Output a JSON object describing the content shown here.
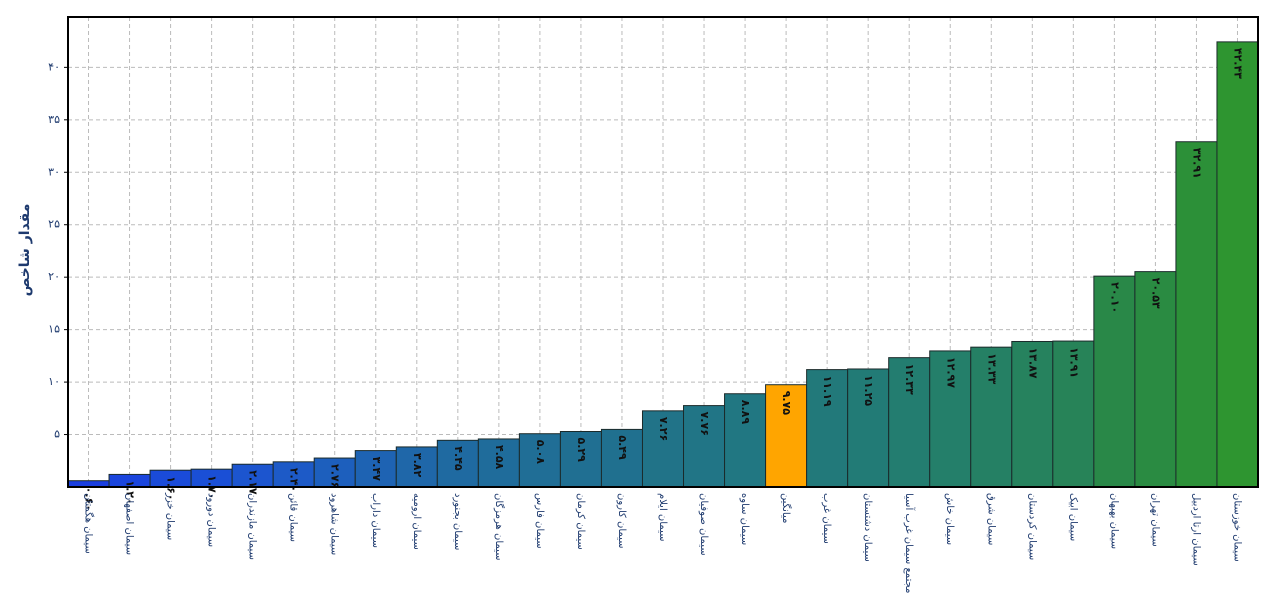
{
  "chart_data": {
    "type": "bar",
    "y_label": "مقدار شاخص",
    "categories": [
      "سیمان هگمتان",
      "سیمان اصفهان",
      "سیمان خزر",
      "سیمان دورود",
      "سیمان مازندران",
      "سیمان قائن",
      "سیمان شاهرود",
      "سیمان داراب",
      "سیمان ارومیه",
      "سیمان بجنورد",
      "سیمان هرمزگان",
      "سیمان فارس",
      "سیمان کرمان",
      "سیمان کارون",
      "سیمان ایلام",
      "سیمان صوفیان",
      "سیمان ساوه",
      "میانگین",
      "سیمان غرب",
      "سیمان دشتستان",
      "مجتمع سیمان غرب آسیا",
      "سیمان خاش",
      "سیمان شرق",
      "سیمان کردستان",
      "سیمان ابیک",
      "سیمان بهبهان",
      "سیمان تهران",
      "سیمان ارتا اردبیل",
      "سیمان خوزستان"
    ],
    "values": [
      0.6,
      1.2,
      1.6,
      1.7,
      2.17,
      2.4,
      2.76,
      3.47,
      3.82,
      4.45,
      4.58,
      5.08,
      5.29,
      5.49,
      7.26,
      7.76,
      8.89,
      9.75,
      11.19,
      11.25,
      12.33,
      12.97,
      13.33,
      13.87,
      13.91,
      20.1,
      20.53,
      32.91,
      42.43
    ],
    "value_labels": [
      "۰.۶۰",
      "۱.۲۰",
      "۱.۶۰",
      "۱.۷۰",
      "۲.۱۷",
      "۲.۴۰",
      "۲.۷۶",
      "۳.۴۷",
      "۳.۸۲",
      "۴.۴۵",
      "۴.۵۸",
      "۵.۰۸",
      "۵.۲۹",
      "۵.۴۹",
      "۷.۲۶",
      "۷.۷۶",
      "۸.۸۹",
      "۹.۷۵",
      "۱۱.۱۹",
      "۱۱.۲۵",
      "۱۲.۳۳",
      "۱۲.۹۷",
      "۱۳.۳۳",
      "۱۳.۸۷",
      "۱۳.۹۱",
      "۲۰.۱۰",
      "۲۰.۵۳",
      "۳۲.۹۱",
      "۴۲.۴۳"
    ],
    "colors": [
      "#1a3fe0",
      "#1a45dd",
      "#1a4bd9",
      "#1a4fd6",
      "#1c55cf",
      "#1d5ac7",
      "#1d5fbd",
      "#1e63b3",
      "#1f67a9",
      "#1f6aa1",
      "#1f6c9b",
      "#206e96",
      "#206f92",
      "#20708f",
      "#217388",
      "#217586",
      "#217782",
      "#ffa500",
      "#22797a",
      "#227b76",
      "#237d70",
      "#247f6a",
      "#258064",
      "#26825e",
      "#278358",
      "#298848",
      "#2a8b42",
      "#2c9038",
      "#2e9530"
    ],
    "ylim": [
      0,
      44.8
    ],
    "yticks": [
      {
        "value": 5,
        "label": "۵"
      },
      {
        "value": 10,
        "label": "۱۰"
      },
      {
        "value": 15,
        "label": "۱۵"
      },
      {
        "value": 20,
        "label": "۲۰"
      },
      {
        "value": 25,
        "label": "۲۵"
      },
      {
        "value": 30,
        "label": "۳۰"
      },
      {
        "value": 35,
        "label": "۳۵"
      },
      {
        "value": 40,
        "label": "۴۰"
      }
    ],
    "grid": true
  }
}
